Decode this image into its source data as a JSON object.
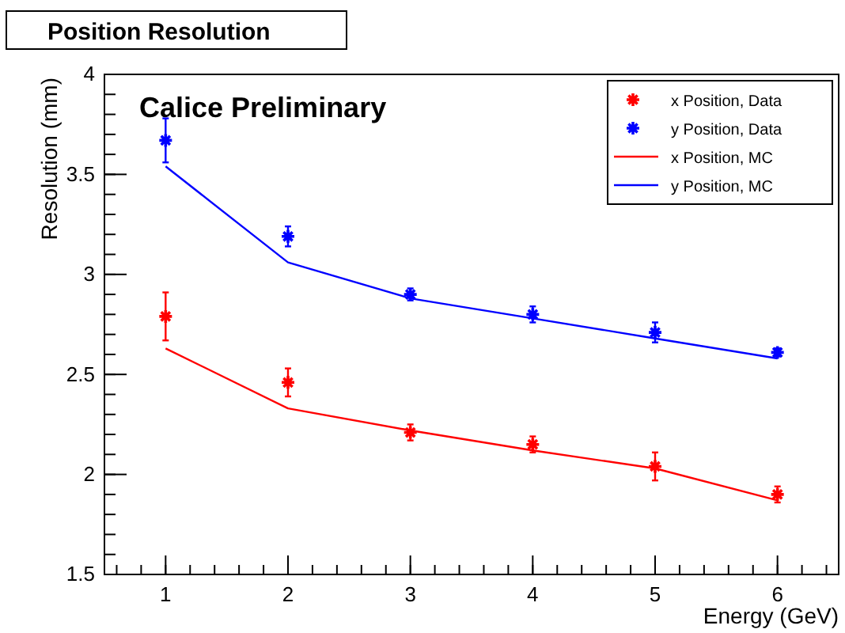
{
  "chart_data": {
    "type": "scatter",
    "title": "Position Resolution",
    "xlabel": "Energy (GeV)",
    "ylabel": "Resolution (mm)",
    "annotations": [
      "Calice Preliminary"
    ],
    "x": [
      1,
      2,
      3,
      4,
      5,
      6
    ],
    "series": [
      {
        "name": "x Position, Data",
        "marker": "cross",
        "color": "#ff0000",
        "values": [
          2.79,
          2.46,
          2.21,
          2.15,
          2.04,
          1.9
        ],
        "errors": [
          0.12,
          0.07,
          0.04,
          0.04,
          0.07,
          0.04
        ]
      },
      {
        "name": "y Position, Data",
        "marker": "cross",
        "color": "#0000ff",
        "values": [
          3.67,
          3.19,
          2.9,
          2.8,
          2.71,
          2.61
        ],
        "errors": [
          0.11,
          0.05,
          0.03,
          0.04,
          0.05,
          0.02
        ]
      },
      {
        "name": "x Position, MC",
        "type": "line",
        "color": "#ff0000",
        "values": [
          2.63,
          2.33,
          2.22,
          2.12,
          2.03,
          1.87
        ]
      },
      {
        "name": "y Position, MC",
        "type": "line",
        "color": "#0000ff",
        "values": [
          3.54,
          3.06,
          2.88,
          2.78,
          2.68,
          2.58
        ]
      }
    ],
    "xlim": [
      0.5,
      6.5
    ],
    "xticks": [
      1,
      2,
      3,
      4,
      5,
      6
    ],
    "ylim": [
      1.5,
      4
    ],
    "yticks": [
      1.5,
      2,
      2.5,
      3,
      3.5,
      4
    ],
    "legend": "top right",
    "line_style": "solid",
    "grid": false
  }
}
